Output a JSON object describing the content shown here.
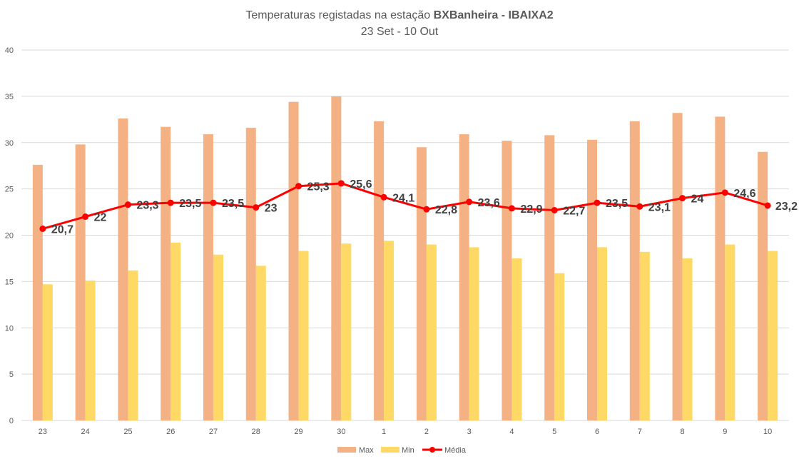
{
  "chart_data": {
    "type": "bar",
    "title_prefix": "Temperaturas registadas na estação ",
    "title_bold": "BXBanheira - IBAIXA2",
    "subtitle": "23 Set - 10 Out",
    "xlabel": "",
    "ylabel": "",
    "ylim": [
      0,
      40
    ],
    "yticks": [
      0,
      5,
      10,
      15,
      20,
      25,
      30,
      35,
      40
    ],
    "grid": true,
    "legend_position": "bottom",
    "categories": [
      "23",
      "24",
      "25",
      "26",
      "27",
      "28",
      "29",
      "30",
      "1",
      "2",
      "3",
      "4",
      "5",
      "6",
      "7",
      "8",
      "9",
      "10"
    ],
    "series": [
      {
        "name": "Max",
        "kind": "bar",
        "color": "#f4b183",
        "values": [
          27.6,
          29.8,
          32.6,
          31.7,
          30.9,
          31.6,
          34.4,
          35.0,
          32.3,
          29.5,
          30.9,
          30.2,
          30.8,
          30.3,
          32.3,
          33.2,
          32.8,
          29.0
        ]
      },
      {
        "name": "Min",
        "kind": "bar",
        "color": "#ffd966",
        "values": [
          14.7,
          15.1,
          16.2,
          19.2,
          17.9,
          16.7,
          18.3,
          19.1,
          19.4,
          19.0,
          18.7,
          17.5,
          15.9,
          18.7,
          18.2,
          17.5,
          19.0,
          18.3
        ]
      },
      {
        "name": "Média",
        "kind": "line",
        "color": "#ff0000",
        "values": [
          20.7,
          22,
          23.3,
          23.5,
          23.5,
          23,
          25.3,
          25.6,
          24.1,
          22.8,
          23.6,
          22.9,
          22.7,
          23.5,
          23.1,
          24,
          24.6,
          23.2
        ],
        "labels": [
          "20,7",
          "22",
          "23,3",
          "23,5",
          "23,5",
          "23",
          "25,3",
          "25,6",
          "24,1",
          "22,8",
          "23,6",
          "22,9",
          "22,7",
          "23,5",
          "23,1",
          "24",
          "24,6",
          "23,2"
        ]
      }
    ]
  }
}
